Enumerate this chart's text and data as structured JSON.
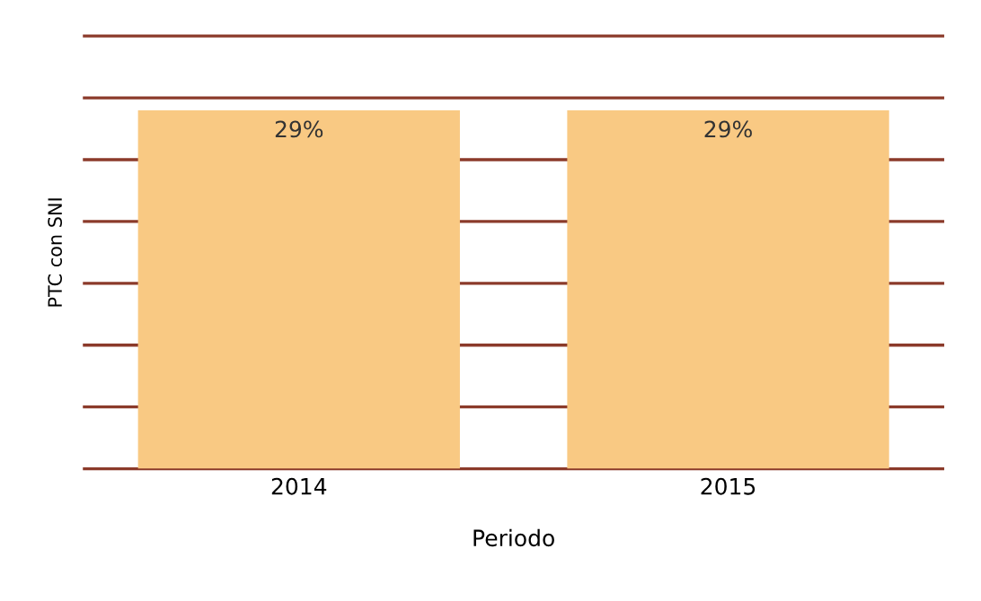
{
  "chart_data": {
    "type": "bar",
    "xlabel": "Periodo",
    "ylabel": "PTC con SNI",
    "categories": [
      "2014",
      "2015"
    ],
    "values": [
      29,
      29
    ],
    "color": "#f9c983",
    "value_labels": [
      "29%",
      "29%"
    ],
    "ylim": [
      0,
      35
    ],
    "yticks": [
      {
        "value": 0,
        "label": null
      },
      {
        "value": 5,
        "label": null
      },
      {
        "value": 10,
        "label": null
      },
      {
        "value": 15,
        "label": null
      },
      {
        "value": 20,
        "label": null
      },
      {
        "value": 25,
        "label": null
      },
      {
        "value": 30,
        "label": null
      },
      {
        "value": 35,
        "label": null
      }
    ],
    "grid": "y"
  }
}
